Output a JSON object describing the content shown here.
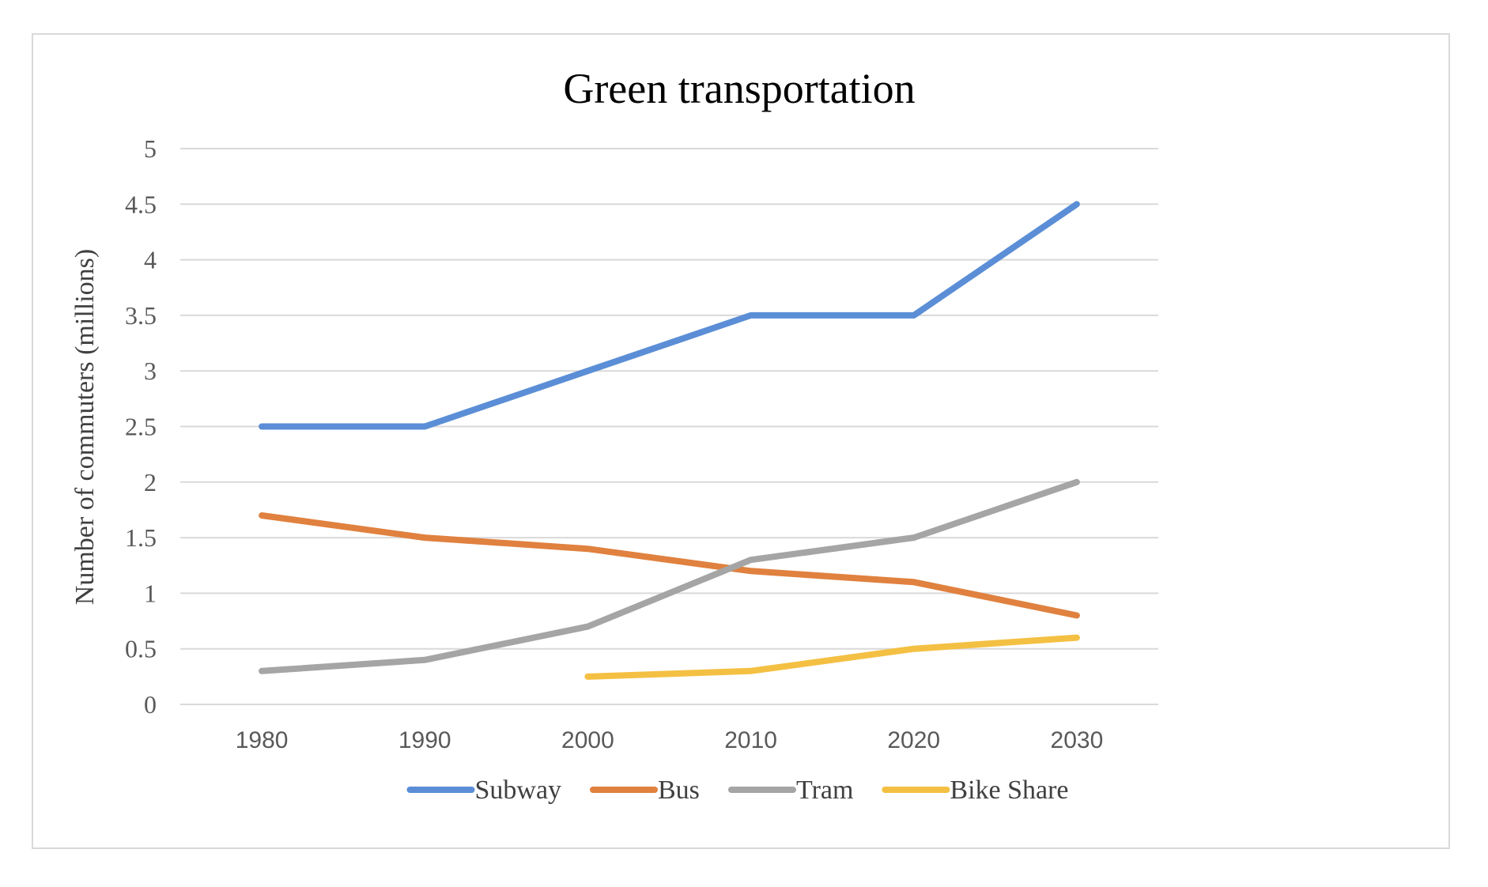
{
  "chart_data": {
    "type": "line",
    "title": "Green transportation",
    "xlabel": "",
    "ylabel": "Number of commuters (millions)",
    "categories": [
      "1980",
      "1990",
      "2000",
      "2010",
      "2020",
      "2030"
    ],
    "ylim": [
      0,
      5
    ],
    "yticks": [
      "0",
      "0.5",
      "1",
      "1.5",
      "2",
      "2.5",
      "3",
      "3.5",
      "4",
      "4.5",
      "5"
    ],
    "grid": true,
    "legend_position": "bottom",
    "series": [
      {
        "name": "Subway",
        "color": "#5B8ED6",
        "values": [
          2.5,
          2.5,
          3.0,
          3.5,
          3.5,
          4.5
        ]
      },
      {
        "name": "Bus",
        "color": "#E0813F",
        "values": [
          1.7,
          1.5,
          1.4,
          1.2,
          1.1,
          0.8
        ]
      },
      {
        "name": "Tram",
        "color": "#A5A5A5",
        "values": [
          0.3,
          0.4,
          0.7,
          1.3,
          1.5,
          2.0
        ]
      },
      {
        "name": "Bike Share",
        "color": "#F4C043",
        "values": [
          null,
          null,
          0.25,
          0.3,
          0.5,
          0.6
        ]
      }
    ]
  }
}
